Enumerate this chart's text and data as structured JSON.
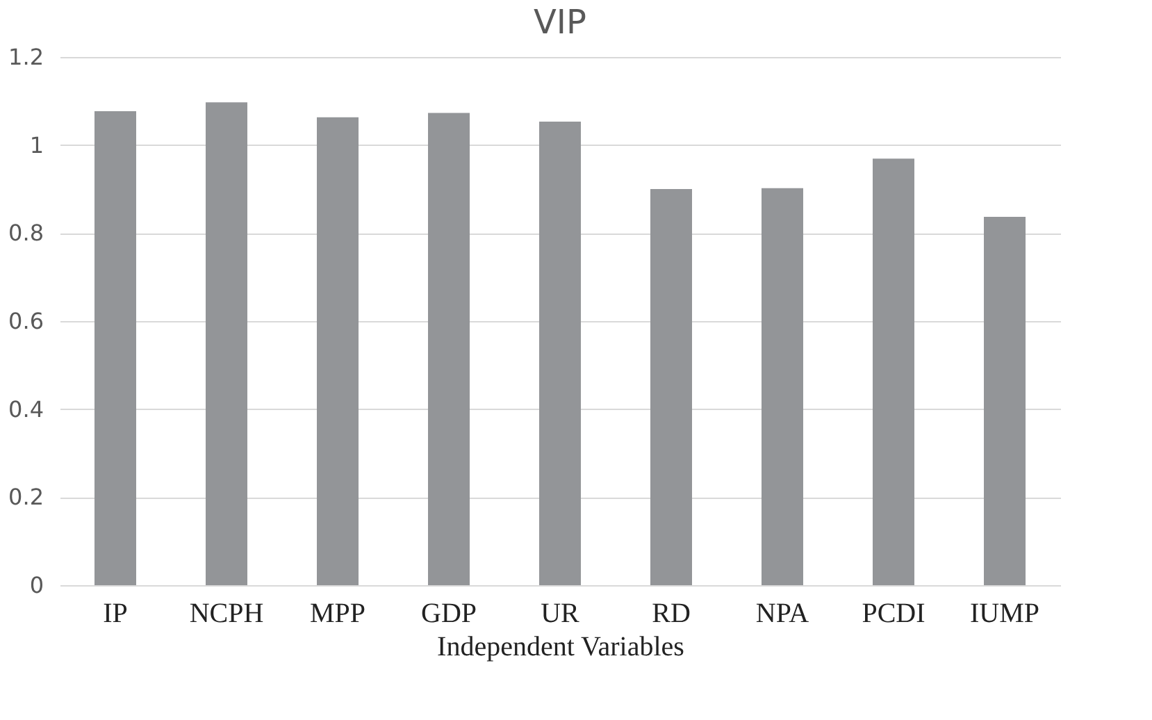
{
  "chart_data": {
    "type": "bar",
    "title": "VIP",
    "xlabel": "Independent Variables",
    "categories": [
      "IP",
      "NCPH",
      "MPP",
      "GDP",
      "UR",
      "RD",
      "NPA",
      "PCDI",
      "IUMP"
    ],
    "values": [
      1.077,
      1.097,
      1.063,
      1.073,
      1.053,
      0.9,
      0.902,
      0.969,
      0.837
    ],
    "color": "#939598",
    "ylim": [
      0,
      1.2
    ],
    "yticks": [
      0,
      0.2,
      0.4,
      0.6,
      0.8,
      1,
      1.2
    ],
    "grid": "y"
  }
}
